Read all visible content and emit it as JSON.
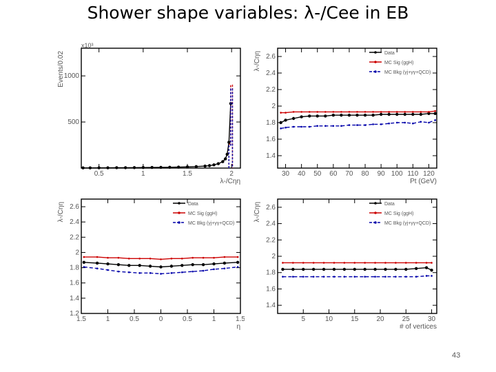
{
  "slide": {
    "title": "Shower shape variables:  λ-/Cee in EB",
    "page_number": "43"
  },
  "colors": {
    "data": "#000000",
    "mc_sig": "#cc0000",
    "mc_bkg": "#0000aa",
    "frame": "#000000"
  },
  "chart_data": [
    {
      "id": "distribution",
      "type": "line",
      "xlabel": "λ-/Cηη",
      "ylabel": "Events/0.02",
      "scale_label": "x10³",
      "xlim": [
        0.3,
        2.1
      ],
      "ylim": [
        0,
        1300
      ],
      "x_ticks": [
        "0.5",
        "1",
        "1.5",
        "2"
      ],
      "y_ticks": [
        "500",
        "1000"
      ],
      "x_tick_values": [
        0.5,
        1,
        1.5,
        2
      ],
      "y_tick_values": [
        500,
        1000
      ],
      "series": [
        {
          "key": "data",
          "x": [
            0.32,
            0.4,
            0.5,
            0.6,
            0.7,
            0.8,
            0.9,
            1.0,
            1.1,
            1.2,
            1.3,
            1.4,
            1.5,
            1.6,
            1.7,
            1.75,
            1.8,
            1.85,
            1.9,
            1.93,
            1.95,
            1.97,
            1.99
          ],
          "y": [
            2,
            2,
            3,
            3,
            4,
            4,
            5,
            6,
            7,
            8,
            9,
            11,
            13,
            16,
            22,
            27,
            35,
            48,
            70,
            100,
            150,
            280,
            700
          ]
        },
        {
          "key": "mc_sig",
          "style": "step",
          "x": [
            1.97,
            1.99,
            2.01
          ],
          "y": [
            260,
            900,
            0
          ]
        },
        {
          "key": "mc_bkg",
          "style": "step",
          "x": [
            1.97,
            1.99,
            2.01
          ],
          "y": [
            240,
            860,
            0
          ]
        }
      ]
    },
    {
      "id": "vs-pt",
      "type": "line",
      "xlabel": "Pt (GeV)",
      "ylabel": "λ-/Cηη",
      "xlim": [
        25,
        125
      ],
      "ylim": [
        1.25,
        2.7
      ],
      "x_ticks": [
        "30",
        "40",
        "50",
        "60",
        "70",
        "80",
        "90",
        "100",
        "110",
        "120"
      ],
      "y_ticks": [
        "1.4",
        "1.6",
        "1.8",
        "2",
        "2.2",
        "2.4",
        "2.6"
      ],
      "x_tick_values": [
        30,
        40,
        50,
        60,
        70,
        80,
        90,
        100,
        110,
        120
      ],
      "y_tick_values": [
        1.4,
        1.6,
        1.8,
        2.0,
        2.2,
        2.4,
        2.6
      ],
      "legend": [
        "Data",
        "MC Sig (ggH)",
        "MC Bkg (γj+γγ+QCD)"
      ],
      "legend_position": "top-right",
      "series": [
        {
          "key": "data",
          "name": "Data",
          "x": [
            27,
            30,
            35,
            40,
            45,
            50,
            55,
            60,
            65,
            70,
            75,
            80,
            85,
            90,
            95,
            100,
            105,
            110,
            115,
            120,
            124
          ],
          "y": [
            1.8,
            1.83,
            1.85,
            1.87,
            1.88,
            1.88,
            1.88,
            1.89,
            1.89,
            1.89,
            1.89,
            1.89,
            1.89,
            1.9,
            1.9,
            1.9,
            1.9,
            1.9,
            1.9,
            1.91,
            1.91
          ]
        },
        {
          "key": "mc_sig",
          "name": "MC Sig (ggH)",
          "x": [
            27,
            30,
            35,
            40,
            45,
            50,
            55,
            60,
            65,
            70,
            75,
            80,
            85,
            90,
            95,
            100,
            105,
            110,
            115,
            120,
            124
          ],
          "y": [
            1.92,
            1.92,
            1.93,
            1.93,
            1.93,
            1.93,
            1.93,
            1.93,
            1.93,
            1.93,
            1.93,
            1.93,
            1.93,
            1.93,
            1.93,
            1.93,
            1.93,
            1.93,
            1.93,
            1.93,
            1.94
          ]
        },
        {
          "key": "mc_bkg",
          "name": "MC Bkg (γj+γγ+QCD)",
          "x": [
            27,
            30,
            35,
            40,
            45,
            50,
            55,
            60,
            65,
            70,
            75,
            80,
            85,
            90,
            95,
            100,
            105,
            110,
            115,
            120,
            124
          ],
          "y": [
            1.73,
            1.74,
            1.75,
            1.75,
            1.75,
            1.76,
            1.76,
            1.76,
            1.76,
            1.77,
            1.77,
            1.77,
            1.78,
            1.78,
            1.79,
            1.8,
            1.8,
            1.79,
            1.81,
            1.8,
            1.83
          ]
        }
      ]
    },
    {
      "id": "vs-eta",
      "type": "line",
      "xlabel": "η",
      "ylabel": "λ-/Cηη",
      "xlim": [
        -1.5,
        1.5
      ],
      "ylim": [
        1.2,
        2.7
      ],
      "x_ticks": [
        "1.5",
        "1",
        "0.5",
        "0",
        "0.5",
        "1",
        "1.5"
      ],
      "y_ticks": [
        "1.2",
        "1.4",
        "1.6",
        "1.8",
        "2",
        "2.2",
        "2.4",
        "2.6"
      ],
      "x_tick_values": [
        -1.5,
        -1,
        -0.5,
        0,
        0.5,
        1,
        1.5
      ],
      "y_tick_values": [
        1.2,
        1.4,
        1.6,
        1.8,
        2.0,
        2.2,
        2.4,
        2.6
      ],
      "legend": [
        "Data",
        "MC Sig (ggH)",
        "MC Bkg (γj+γγ+QCD)"
      ],
      "legend_position": "top-right",
      "series": [
        {
          "key": "data",
          "name": "Data",
          "x": [
            -1.45,
            -1.2,
            -1.0,
            -0.8,
            -0.6,
            -0.4,
            -0.2,
            0.0,
            0.2,
            0.4,
            0.6,
            0.8,
            1.0,
            1.2,
            1.45
          ],
          "y": [
            1.87,
            1.86,
            1.85,
            1.84,
            1.83,
            1.83,
            1.82,
            1.81,
            1.82,
            1.83,
            1.84,
            1.84,
            1.85,
            1.86,
            1.87
          ]
        },
        {
          "key": "mc_sig",
          "name": "MC Sig (ggH)",
          "x": [
            -1.45,
            -1.2,
            -1.0,
            -0.8,
            -0.6,
            -0.4,
            -0.2,
            0.0,
            0.2,
            0.4,
            0.6,
            0.8,
            1.0,
            1.2,
            1.45
          ],
          "y": [
            1.94,
            1.94,
            1.93,
            1.93,
            1.92,
            1.92,
            1.92,
            1.91,
            1.92,
            1.92,
            1.93,
            1.93,
            1.93,
            1.94,
            1.94
          ]
        },
        {
          "key": "mc_bkg",
          "name": "MC Bkg (γj+γγ+QCD)",
          "x": [
            -1.45,
            -1.2,
            -1.0,
            -0.8,
            -0.6,
            -0.4,
            -0.2,
            0.0,
            0.2,
            0.4,
            0.6,
            0.8,
            1.0,
            1.2,
            1.45
          ],
          "y": [
            1.81,
            1.79,
            1.77,
            1.75,
            1.74,
            1.73,
            1.73,
            1.72,
            1.73,
            1.74,
            1.75,
            1.76,
            1.78,
            1.79,
            1.81
          ]
        }
      ]
    },
    {
      "id": "vs-vertices",
      "type": "line",
      "xlabel": "# of vertices",
      "ylabel": "λ-/Cηη",
      "xlim": [
        0,
        31
      ],
      "ylim": [
        1.3,
        2.7
      ],
      "x_ticks": [
        "5",
        "10",
        "15",
        "20",
        "25",
        "30"
      ],
      "y_ticks": [
        "1.4",
        "1.6",
        "1.8",
        "2",
        "2.2",
        "2.4",
        "2.6"
      ],
      "x_tick_values": [
        5,
        10,
        15,
        20,
        25,
        30
      ],
      "y_tick_values": [
        1.4,
        1.6,
        1.8,
        2.0,
        2.2,
        2.4,
        2.6
      ],
      "legend": [
        "Data",
        "MC Sig (ggH)",
        "MC Bkg (γj+γγ+QCD)"
      ],
      "legend_position": "top-right",
      "series": [
        {
          "key": "data",
          "name": "Data",
          "x": [
            1,
            3,
            5,
            7,
            9,
            11,
            13,
            15,
            17,
            19,
            21,
            23,
            25,
            27,
            29,
            30
          ],
          "y": [
            1.84,
            1.84,
            1.84,
            1.84,
            1.84,
            1.84,
            1.84,
            1.84,
            1.84,
            1.84,
            1.84,
            1.84,
            1.84,
            1.85,
            1.86,
            1.83
          ]
        },
        {
          "key": "mc_sig",
          "name": "MC Sig (ggH)",
          "x": [
            1,
            3,
            5,
            7,
            9,
            11,
            13,
            15,
            17,
            19,
            21,
            23,
            25,
            27,
            29,
            30
          ],
          "y": [
            1.92,
            1.92,
            1.92,
            1.92,
            1.92,
            1.92,
            1.92,
            1.92,
            1.92,
            1.92,
            1.92,
            1.92,
            1.92,
            1.92,
            1.92,
            1.92
          ]
        },
        {
          "key": "mc_bkg",
          "name": "MC Bkg (γj+γγ+QCD)",
          "x": [
            1,
            3,
            5,
            7,
            9,
            11,
            13,
            15,
            17,
            19,
            21,
            23,
            25,
            27,
            29,
            30
          ],
          "y": [
            1.75,
            1.75,
            1.75,
            1.75,
            1.75,
            1.75,
            1.75,
            1.75,
            1.75,
            1.75,
            1.75,
            1.75,
            1.75,
            1.75,
            1.76,
            1.76
          ]
        }
      ]
    }
  ]
}
